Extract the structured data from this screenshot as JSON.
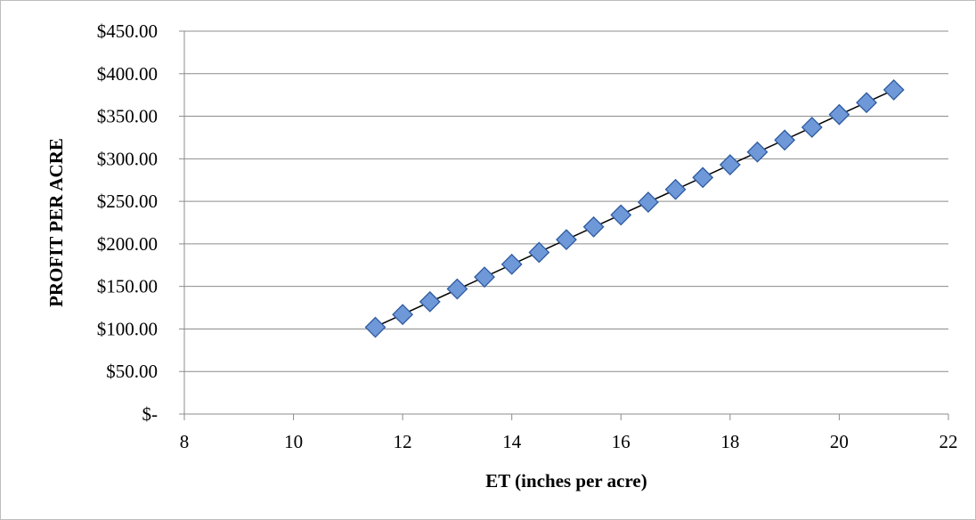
{
  "chart_data": {
    "type": "scatter",
    "title": "",
    "xlabel": "ET (inches per acre)",
    "ylabel": "PROFIT PER ACRE",
    "xlim": [
      8,
      22
    ],
    "ylim": [
      0,
      450
    ],
    "x_ticks": [
      8,
      10,
      12,
      14,
      16,
      18,
      20,
      22
    ],
    "y_ticks": [
      0,
      50,
      100,
      150,
      200,
      250,
      300,
      350,
      400,
      450
    ],
    "x_tick_labels": [
      "8",
      "10",
      "12",
      "14",
      "16",
      "18",
      "20",
      "22"
    ],
    "y_tick_labels": [
      "$-",
      "$50.00",
      "$100.00",
      "$150.00",
      "$200.00",
      "$250.00",
      "$300.00",
      "$350.00",
      "$400.00",
      "$450.00"
    ],
    "grid": "horizontal",
    "legend": "none",
    "trendline": "linear",
    "marker": "diamond",
    "colors": {
      "marker_fill": "#6f98d8",
      "marker_edge": "#2d5aa0",
      "trendline": "#000000",
      "grid": "#8c8c8c"
    },
    "series": [
      {
        "x": [
          11.5,
          12,
          12.5,
          13,
          13.5,
          14,
          14.5,
          15,
          15.5,
          16,
          16.5,
          17,
          17.5,
          18,
          18.5,
          19,
          19.5,
          20,
          20.5,
          21
        ],
        "y": [
          102,
          117,
          132,
          147,
          161,
          176,
          190,
          205,
          220,
          234,
          249,
          264,
          278,
          293,
          308,
          322,
          337,
          352,
          366,
          381
        ]
      }
    ]
  }
}
